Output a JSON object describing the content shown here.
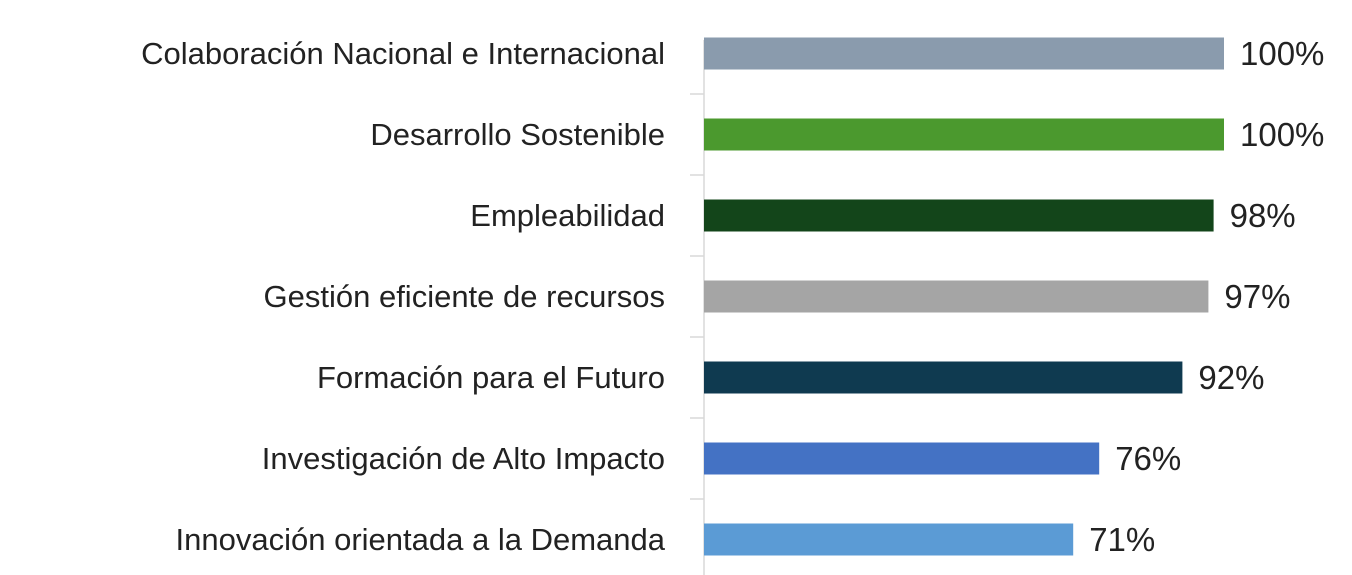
{
  "chart_data": {
    "type": "hbar",
    "categories": [
      "Colaboración Nacional e Internacional",
      "Desarrollo Sostenible",
      "Empleabilidad",
      "Gestión eficiente de recursos",
      "Formación para el Futuro",
      "Investigación de Alto Impacto",
      "Innovación orientada a la Demanda"
    ],
    "values": [
      100,
      100,
      98,
      97,
      92,
      76,
      71
    ],
    "value_labels": [
      "100%",
      "100%",
      "98%",
      "97%",
      "92%",
      "76%",
      "71%"
    ],
    "colors": [
      "#8a9bad",
      "#4b992e",
      "#13451a",
      "#a5a5a5",
      "#0f3a50",
      "#4472c4",
      "#5b9bd5"
    ],
    "xlim": [
      0,
      100
    ]
  }
}
